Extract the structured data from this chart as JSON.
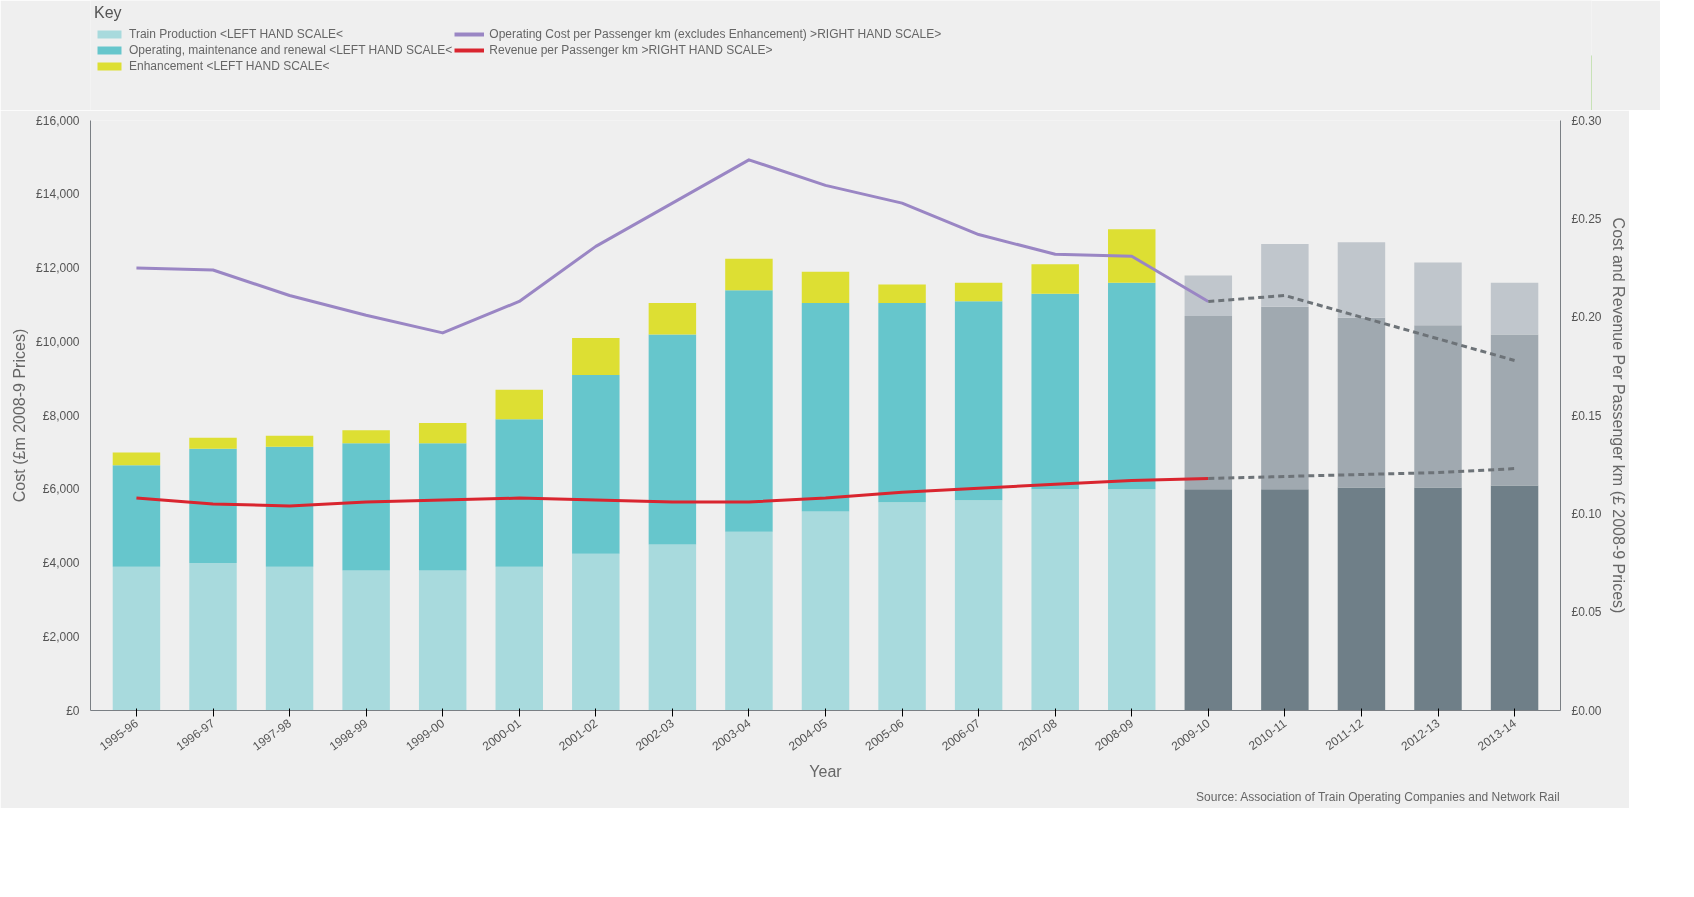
{
  "chart_data": {
    "type": "bar",
    "stacked": true,
    "legend_title": "Key",
    "legend": "top left",
    "xlabel": "Year",
    "ylabel": "Cost (£m 2008-9 Prices)",
    "y2label": "Cost and Revenue Per Passenger km (£ 2008-9 Prices)",
    "categories": [
      "1995-96",
      "1996-97",
      "1997-98",
      "1998-99",
      "1999-00",
      "2000-01",
      "2001-02",
      "2002-03",
      "2003-04",
      "2004-05",
      "2005-06",
      "2006-07",
      "2007-08",
      "2008-09",
      "2009-10",
      "2010-11",
      "2011-12",
      "2012-13",
      "2013-14"
    ],
    "ylim": [
      0,
      16000
    ],
    "yticks": [
      {
        "value": 0,
        "label": "£0"
      },
      {
        "value": 2000,
        "label": "£2,000"
      },
      {
        "value": 4000,
        "label": "£4,000"
      },
      {
        "value": 6000,
        "label": "£6,000"
      },
      {
        "value": 8000,
        "label": "£8,000"
      },
      {
        "value": 10000,
        "label": "£10,000"
      },
      {
        "value": 12000,
        "label": "£12,000"
      },
      {
        "value": 14000,
        "label": "£14,000"
      },
      {
        "value": 16000,
        "label": "£16,000"
      }
    ],
    "y2lim": [
      0,
      0.3
    ],
    "y2ticks": [
      {
        "value": 0,
        "label": "£0.00"
      },
      {
        "value": 0.05,
        "label": "£0.05"
      },
      {
        "value": 0.1,
        "label": "£0.10"
      },
      {
        "value": 0.15,
        "label": "£0.15"
      },
      {
        "value": 0.2,
        "label": "£0.20"
      },
      {
        "value": 0.25,
        "label": "£0.25"
      },
      {
        "value": 0.3,
        "label": "£0.30"
      }
    ],
    "grid": false,
    "series": [
      {
        "name": "Train Production <LEFT HAND SCALE<",
        "color": "#a8dadd",
        "colors": [
          "#a8dadd",
          "#a8dadd",
          "#a8dadd",
          "#a8dadd",
          "#a8dadd",
          "#a8dadd",
          "#a8dadd",
          "#a8dadd",
          "#a8dadd",
          "#a8dadd",
          "#a8dadd",
          "#a8dadd",
          "#a8dadd",
          "#a8dadd",
          "#6f7f88",
          "#6f7f88",
          "#6f7f88",
          "#6f7f88",
          "#6f7f88"
        ],
        "values": [
          3900,
          4000,
          3900,
          3800,
          3800,
          3900,
          4250,
          4500,
          4850,
          5400,
          5650,
          5700,
          6000,
          6000,
          6000,
          6000,
          6050,
          6050,
          6100
        ]
      },
      {
        "name": "Operating, maintenance and renewal <LEFT HAND SCALE<",
        "color": "#66c6cc",
        "colors": [
          "#66c6cc",
          "#66c6cc",
          "#66c6cc",
          "#66c6cc",
          "#66c6cc",
          "#66c6cc",
          "#66c6cc",
          "#66c6cc",
          "#66c6cc",
          "#66c6cc",
          "#66c6cc",
          "#66c6cc",
          "#66c6cc",
          "#66c6cc",
          "#a0a9b0",
          "#a0a9b0",
          "#a0a9b0",
          "#a0a9b0",
          "#a0a9b0"
        ],
        "values": [
          2750,
          3100,
          3250,
          3450,
          3450,
          4000,
          4850,
          5700,
          6550,
          5650,
          5400,
          5400,
          5300,
          5600,
          4700,
          4950,
          4600,
          4400,
          4100
        ]
      },
      {
        "name": "Enhancement <LEFT HAND SCALE<",
        "color": "#dddf33",
        "colors": [
          "#dddf33",
          "#dddf33",
          "#dddf33",
          "#dddf33",
          "#dddf33",
          "#dddf33",
          "#dddf33",
          "#dddf33",
          "#dddf33",
          "#dddf33",
          "#dddf33",
          "#dddf33",
          "#dddf33",
          "#dddf33",
          "#c0c6cc",
          "#c0c6cc",
          "#c0c6cc",
          "#c0c6cc",
          "#c0c6cc"
        ],
        "values": [
          350,
          300,
          300,
          350,
          550,
          800,
          1000,
          850,
          850,
          850,
          500,
          500,
          800,
          1450,
          1100,
          1700,
          2050,
          1700,
          1400
        ]
      },
      {
        "type": "line",
        "axis": "y2",
        "name": "Operating Cost per Passenger km (excludes Enhancement) >RIGHT HAND SCALE>",
        "color": "#9a86c4",
        "line_style": "solid",
        "values": [
          0.225,
          0.224,
          0.211,
          0.201,
          0.192,
          0.208,
          0.236,
          0.258,
          0.28,
          0.267,
          0.258,
          0.242,
          0.232,
          0.231,
          0.208,
          null,
          null,
          null,
          null
        ]
      },
      {
        "type": "line",
        "axis": "y2",
        "name": "Revenue per Passenger km >RIGHT HAND SCALE>",
        "color": "#d9252f",
        "line_style": "solid",
        "values": [
          0.108,
          0.105,
          0.104,
          0.106,
          0.107,
          0.108,
          0.107,
          0.106,
          0.106,
          0.108,
          0.111,
          0.113,
          0.115,
          0.117,
          0.118,
          null,
          null,
          null,
          null
        ]
      },
      {
        "type": "line",
        "axis": "y2",
        "color": "#6d7378",
        "line_style": "dashed",
        "values": [
          null,
          null,
          null,
          null,
          null,
          null,
          null,
          null,
          null,
          null,
          null,
          null,
          null,
          null,
          0.208,
          0.211,
          0.2,
          0.189,
          0.178
        ]
      },
      {
        "type": "line",
        "axis": "y2",
        "color": "#6d7378",
        "line_style": "dashed",
        "values": [
          null,
          null,
          null,
          null,
          null,
          null,
          null,
          null,
          null,
          null,
          null,
          null,
          null,
          null,
          0.118,
          0.119,
          0.12,
          0.121,
          0.123
        ]
      }
    ],
    "annotations": [
      "Source: Association of Train Operating Companies and Network Rail"
    ]
  }
}
